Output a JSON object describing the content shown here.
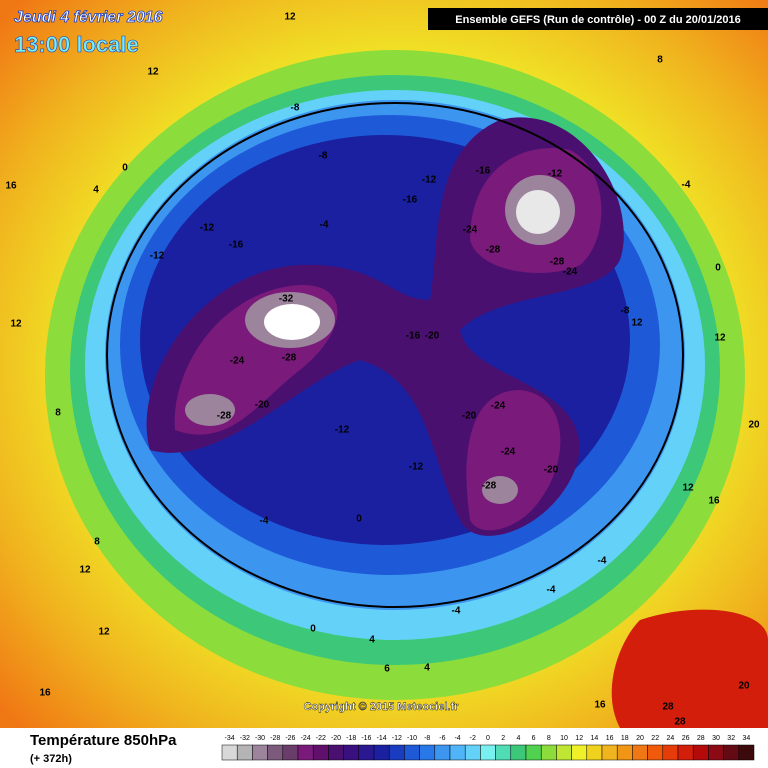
{
  "header": {
    "date": "Jeudi 4 février 2016",
    "time": "13:00 locale",
    "run": "Ensemble GEFS  (Run de contrôle)  -  00 Z du 20/01/2016"
  },
  "footer": {
    "variable": "Température 850hPa",
    "lead": "(+ 372h)",
    "copyright": "Copyright © 2015 Meteociel.fr"
  },
  "colorbar": {
    "ticks": [
      -34,
      -32,
      -30,
      -28,
      -26,
      -24,
      -22,
      -20,
      -18,
      -16,
      -14,
      -12,
      -10,
      -8,
      -6,
      -4,
      -2,
      0,
      2,
      4,
      6,
      8,
      10,
      12,
      14,
      16,
      18,
      20,
      22,
      24,
      26,
      28,
      30,
      32,
      34
    ],
    "colors": [
      "#d8d8d8",
      "#b4b4b4",
      "#9c849c",
      "#7c5a7c",
      "#6a3c6a",
      "#7a1a7a",
      "#60106a",
      "#4a1070",
      "#3a1080",
      "#2a1890",
      "#1a20a0",
      "#1a3cc0",
      "#1e5ad8",
      "#2878e8",
      "#3c96f0",
      "#50b4f8",
      "#64d2f8",
      "#78f0f0",
      "#50dcb4",
      "#3cc878",
      "#50d250",
      "#8cdc3c",
      "#bee632",
      "#f0f028",
      "#f0d21e",
      "#f0b41e",
      "#f09614",
      "#f07814",
      "#f05a0a",
      "#e63c0a",
      "#d21e0a",
      "#b40a0a",
      "#8c0a14",
      "#640a14",
      "#3c0a0a"
    ]
  },
  "contour_labels": [
    12,
    12,
    -8,
    -8,
    -12,
    -16,
    -12,
    -16,
    -24,
    -28,
    -28,
    -24,
    -12,
    -12,
    -16,
    -4,
    -32,
    -28,
    -24,
    -20,
    -28,
    -16,
    -20,
    -24,
    -20,
    -24,
    -28,
    -20,
    -12,
    -12,
    -4,
    0,
    0,
    4,
    6,
    4,
    12,
    16,
    16,
    28,
    28,
    20,
    20,
    12,
    12,
    16,
    0,
    -4,
    16,
    12,
    8,
    8,
    4,
    0,
    12,
    -8,
    -4,
    -4,
    -4,
    8,
    12
  ]
}
